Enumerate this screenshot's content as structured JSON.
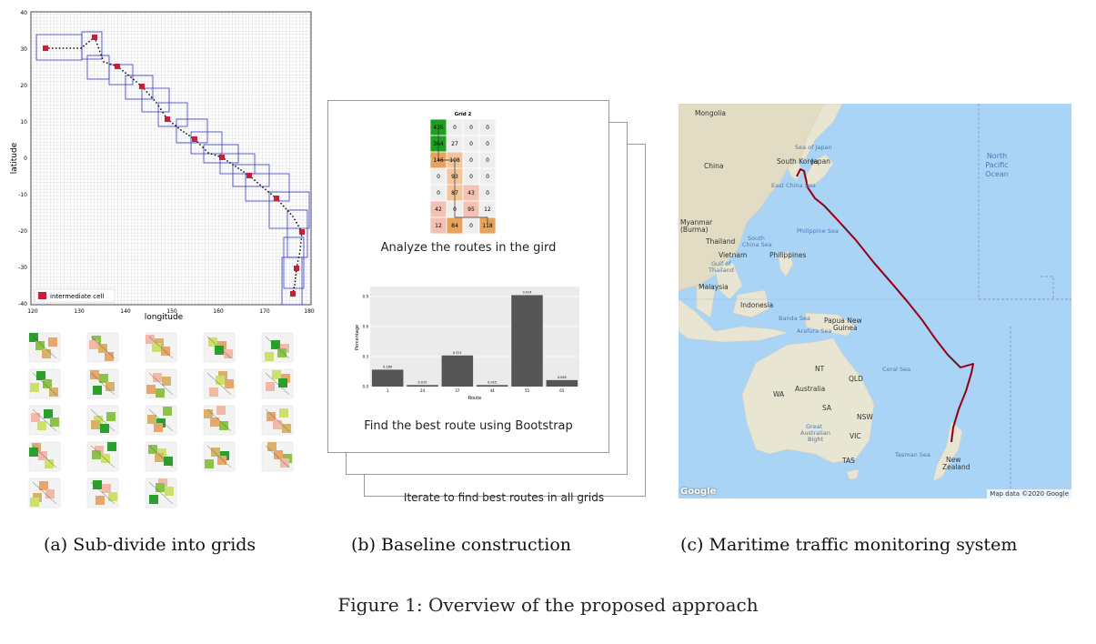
{
  "panel_a": {
    "ylabel": "latitude",
    "xlabel": "longitude",
    "yticks": [
      "40",
      "30",
      "20",
      "10",
      "0",
      "-10",
      "-20",
      "-30",
      "-40"
    ],
    "xticks": [
      "120",
      "130",
      "140",
      "150",
      "160",
      "170",
      "180"
    ],
    "legend": "intermediate cell",
    "caption": "(a) Sub-divide into grids",
    "colors": {
      "cell": "#c81e3a",
      "box": "#3a3ac8",
      "route": "#111111"
    }
  },
  "panel_b": {
    "grid_title": "Grid 2",
    "grid_values": [
      [
        "435",
        "0",
        "0",
        "0"
      ],
      [
        "364",
        "27",
        "0",
        "0"
      ],
      [
        "146",
        "108",
        "0",
        "0"
      ],
      [
        "0",
        "93",
        "0",
        "0"
      ],
      [
        "0",
        "87",
        "43",
        "0"
      ],
      [
        "42",
        "0",
        "95",
        "12"
      ],
      [
        "12",
        "84",
        "0",
        "118"
      ]
    ],
    "analyze_caption": "Analyze the routes in the gird",
    "bar_ylabel": "Percentage",
    "bar_xlabel": "Route",
    "bootstrap_caption": "Find the best route using Bootstrap",
    "iterate_caption": "Iterate to find best routes in all grids",
    "caption": "(b) Baseline construction"
  },
  "chart_data": {
    "type": "bar",
    "categories": [
      "1",
      "24",
      "37",
      "44",
      "55",
      "65"
    ],
    "values": [
      0.169,
      0.015,
      0.311,
      0.015,
      0.914,
      0.065
    ],
    "value_labels": [
      "0.169",
      "0.015",
      "0.311",
      "0.015",
      "0.914",
      "0.065"
    ],
    "xlabel": "Route",
    "ylabel": "Percentage",
    "yticks": [
      "0.0",
      "0.3",
      "0.6",
      "0.9"
    ],
    "ylim": [
      0,
      1.0
    ],
    "grid": true,
    "colors": {
      "bar": "#555555",
      "panel": "#ebebeb"
    }
  },
  "panel_c": {
    "labels": {
      "mongolia": "Mongolia",
      "china": "China",
      "sea_of_japan": "Sea of Japan",
      "south_korea": "South Korea",
      "japan": "Japan",
      "east_china_sea": "East China Sea",
      "north_pacific": "North",
      "north_pacific2": "Pacific",
      "north_pacific3": "Ocean",
      "myanmar": "Myanmar",
      "burma": "(Burma)",
      "thailand": "Thailand",
      "south_china_sea": "South",
      "south_china_sea2": "China Sea",
      "philippine_sea": "Philippine Sea",
      "vietnam": "Vietnam",
      "philippines": "Philippines",
      "gulf": "Gulf of",
      "gulf2": "Thailand",
      "malaysia": "Malaysia",
      "indonesia": "Indonesia",
      "banda_sea": "Banda Sea",
      "arafura_sea": "Arafura Sea",
      "png": "Papua New",
      "png2": "Guinea",
      "coral_sea": "Coral Sea",
      "australia": "Australia",
      "nt": "NT",
      "qld": "QLD",
      "wa": "WA",
      "sa": "SA",
      "nsw": "NSW",
      "vic": "VIC",
      "tas": "TAS",
      "bight": "Great",
      "bight2": "Australian",
      "bight3": "Bight",
      "tasman_sea": "Tasman Sea",
      "nz": "New",
      "nz2": "Zealand"
    },
    "attribution": "Map data ©2020 Google",
    "logo": "Google",
    "caption": "(c) Maritime traffic monitoring system",
    "colors": {
      "ocean": "#a9d4f5",
      "land": "#e9e5d3",
      "route": "#c8102e"
    }
  },
  "figure_caption": "Figure 1: Overview of the proposed approach"
}
